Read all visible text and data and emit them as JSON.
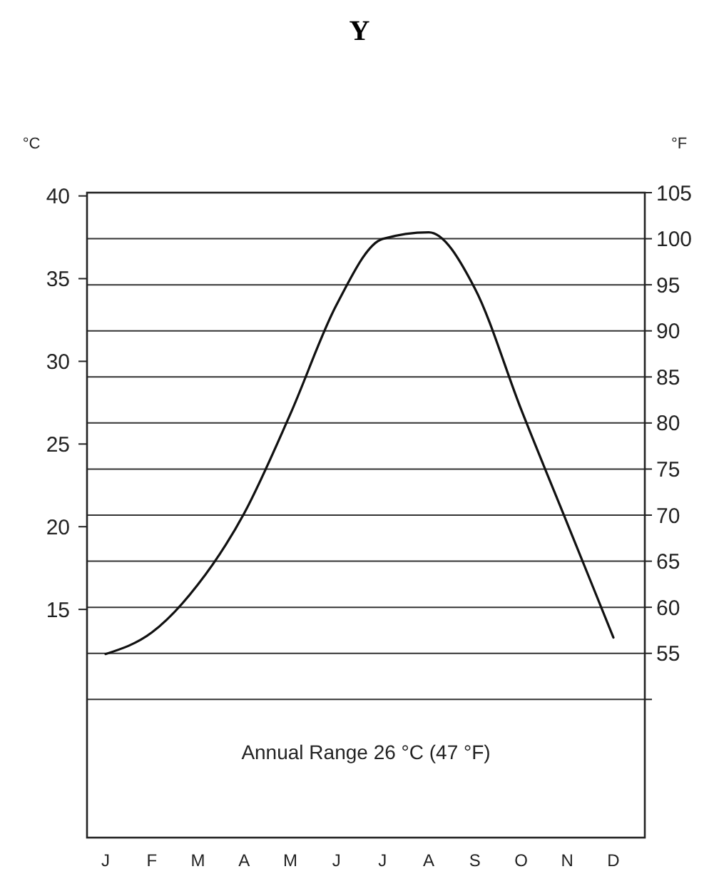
{
  "chart_data": {
    "type": "line",
    "title": "Y",
    "ylabel": "°C",
    "y2label": "°F",
    "categories": [
      "J",
      "F",
      "M",
      "A",
      "M",
      "J",
      "J",
      "A",
      "S",
      "O",
      "N",
      "D"
    ],
    "series": [
      {
        "color": "#111111",
        "values": [
          12.3,
          13.6,
          16.5,
          20.8,
          26.8,
          33.4,
          37.4,
          37.8,
          34.4,
          27.1,
          20.2,
          13.3
        ]
      }
    ],
    "ylim": [
      1.2,
      40.2
    ],
    "yticks": [
      15,
      20,
      25,
      30,
      35,
      40
    ],
    "y2lim": [
      35,
      105
    ],
    "y2ticks": [
      {
        "value": 50,
        "label": null
      },
      55,
      60,
      65,
      70,
      75,
      80,
      85,
      90,
      95,
      100,
      105
    ],
    "grid": true,
    "marker": "none",
    "line_style": "solid",
    "annotations": [
      "Annual Range 26 °C (47 °F)"
    ]
  }
}
